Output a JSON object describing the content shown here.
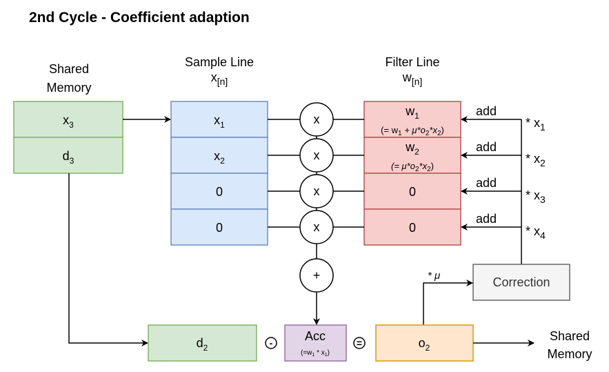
{
  "title": "2nd Cycle - Coefficient adaption",
  "colors": {
    "green_fill": "#d5e8d4",
    "green_stroke": "#82b366",
    "blue_fill": "#dae8fc",
    "blue_stroke": "#6c8ebf",
    "red_fill": "#f8cecc",
    "red_stroke": "#b85450",
    "purple_fill": "#e1d5e7",
    "purple_stroke": "#9673a6",
    "orange_fill": "#ffe6cc",
    "orange_stroke": "#d79b00",
    "gray_fill": "#f5f5f5",
    "gray_stroke": "#666666"
  },
  "shared_memory": {
    "label1": "Shared",
    "label2": "Memory",
    "cells": [
      {
        "main": "x",
        "sub": "3"
      },
      {
        "main": "d",
        "sub": "3"
      }
    ]
  },
  "sample_line": {
    "label": "Sample Line",
    "var": "x",
    "var_sub": "[n]",
    "cells": [
      {
        "main": "x",
        "sub": "1"
      },
      {
        "main": "x",
        "sub": "2"
      },
      {
        "main": "0",
        "sub": ""
      },
      {
        "main": "0",
        "sub": ""
      }
    ]
  },
  "multipliers": [
    "x",
    "x",
    "x",
    "x"
  ],
  "adder": "+",
  "filter_line": {
    "label": "Filter Line",
    "var": "w",
    "var_sub": "[n]",
    "cells": [
      {
        "main": "w",
        "sub": "1",
        "note": "(= w",
        "note_sub": "1",
        "note_rest": " + μ*o",
        "note_sub2": "2",
        "note_rest2": "*x",
        "note_sub3": "2",
        "note_end": ")"
      },
      {
        "main": "w",
        "sub": "2",
        "note": "(= μ*o",
        "note_sub": "2",
        "note_rest": "*x",
        "note_sub2": "2",
        "note_end": ")"
      },
      {
        "main": "0",
        "sub": ""
      },
      {
        "main": "0",
        "sub": ""
      }
    ]
  },
  "add_labels": [
    "add",
    "add",
    "add",
    "add"
  ],
  "correction_factors": [
    {
      "main": "* x",
      "sub": "1"
    },
    {
      "main": "* x",
      "sub": "2"
    },
    {
      "main": "* x",
      "sub": "3"
    },
    {
      "main": "* x",
      "sub": "4"
    }
  ],
  "correction": {
    "label": "Correction",
    "mu_label": "* μ"
  },
  "bottom": {
    "d": {
      "main": "d",
      "sub": "2"
    },
    "minus": "-",
    "acc": {
      "label": "Acc",
      "note": "(=w",
      "note_sub": "1",
      "note_rest": " * x",
      "note_sub2": "1",
      "note_end": ")"
    },
    "equals": "=",
    "o": {
      "main": "o",
      "sub": "2"
    },
    "out_label1": "Shared",
    "out_label2": "Memory"
  }
}
